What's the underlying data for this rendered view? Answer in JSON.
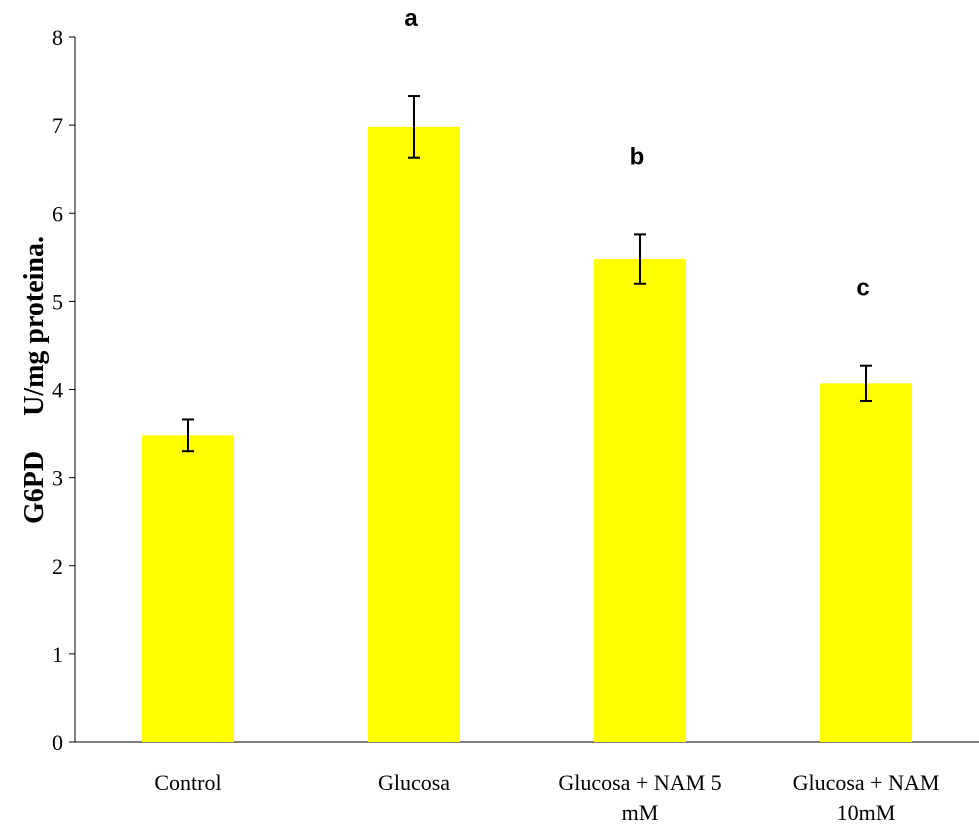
{
  "chart_data": {
    "type": "bar",
    "title": "",
    "xlabel": "",
    "ylabel": "G6PD     U/mg proteina.",
    "ylim": [
      0,
      8
    ],
    "yticks": [
      0,
      1,
      2,
      3,
      4,
      5,
      6,
      7,
      8
    ],
    "categories": [
      [
        "Control"
      ],
      [
        "Glucosa"
      ],
      [
        "Glucosa + NAM  5",
        "mM"
      ],
      [
        "Glucosa + NAM",
        "10mM"
      ]
    ],
    "values": [
      3.48,
      6.98,
      5.48,
      4.07
    ],
    "errors": [
      0.18,
      0.35,
      0.28,
      0.2
    ],
    "significance_labels": [
      "",
      "a",
      "b",
      "c"
    ],
    "bar_color": "#ffff00",
    "grid": false,
    "legend": "none"
  }
}
